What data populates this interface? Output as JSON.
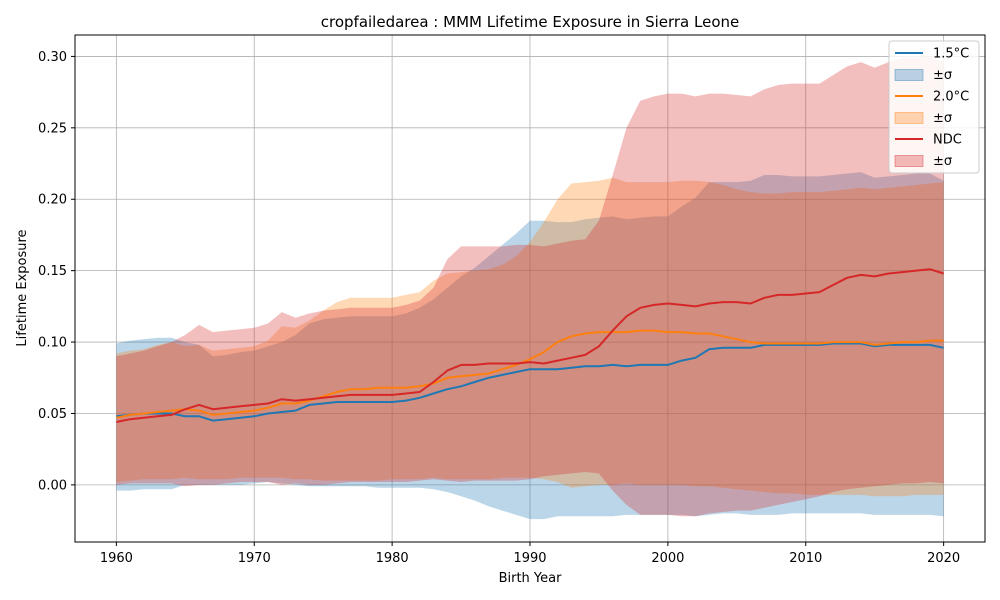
{
  "chart_data": {
    "type": "line",
    "title": "cropfailedarea : MMM Lifetime Exposure in Sierra Leone",
    "xlabel": "Birth Year",
    "ylabel": "Lifetime Exposure",
    "xlim": [
      1957,
      2023
    ],
    "ylim": [
      -0.04,
      0.315
    ],
    "xticks": [
      1960,
      1970,
      1980,
      1990,
      2000,
      2010,
      2020
    ],
    "yticks": [
      0.0,
      0.05,
      0.1,
      0.15,
      0.2,
      0.25,
      0.3
    ],
    "ytick_labels": [
      "0.00",
      "0.05",
      "0.10",
      "0.15",
      "0.20",
      "0.25",
      "0.30"
    ],
    "grid": true,
    "legend_position": "top-right",
    "x": [
      1960,
      1961,
      1962,
      1963,
      1964,
      1965,
      1966,
      1967,
      1968,
      1969,
      1970,
      1971,
      1972,
      1973,
      1974,
      1975,
      1976,
      1977,
      1978,
      1979,
      1980,
      1981,
      1982,
      1983,
      1984,
      1985,
      1986,
      1987,
      1988,
      1989,
      1990,
      1991,
      1992,
      1993,
      1994,
      1995,
      1996,
      1997,
      1998,
      1999,
      2000,
      2001,
      2002,
      2003,
      2004,
      2005,
      2006,
      2007,
      2008,
      2009,
      2010,
      2011,
      2012,
      2013,
      2014,
      2015,
      2016,
      2017,
      2018,
      2019,
      2020
    ],
    "series": [
      {
        "name": "1.5°C",
        "color": "#1f77b4",
        "band_label": "±σ",
        "values": [
          0.048,
          0.049,
          0.05,
          0.05,
          0.05,
          0.048,
          0.048,
          0.045,
          0.046,
          0.047,
          0.048,
          0.05,
          0.051,
          0.052,
          0.056,
          0.057,
          0.058,
          0.058,
          0.058,
          0.058,
          0.058,
          0.059,
          0.061,
          0.064,
          0.067,
          0.069,
          0.072,
          0.075,
          0.077,
          0.079,
          0.081,
          0.081,
          0.081,
          0.082,
          0.083,
          0.083,
          0.084,
          0.083,
          0.084,
          0.084,
          0.084,
          0.087,
          0.089,
          0.095,
          0.096,
          0.096,
          0.096,
          0.098,
          0.098,
          0.098,
          0.098,
          0.098,
          0.099,
          0.099,
          0.099,
          0.097,
          0.098,
          0.098,
          0.098,
          0.098,
          0.096
        ],
        "upper": [
          0.099,
          0.101,
          0.102,
          0.103,
          0.103,
          0.1,
          0.098,
          0.09,
          0.091,
          0.093,
          0.094,
          0.097,
          0.1,
          0.105,
          0.113,
          0.116,
          0.117,
          0.118,
          0.118,
          0.118,
          0.118,
          0.12,
          0.124,
          0.13,
          0.138,
          0.146,
          0.152,
          0.16,
          0.168,
          0.176,
          0.185,
          0.185,
          0.184,
          0.184,
          0.186,
          0.187,
          0.188,
          0.186,
          0.187,
          0.188,
          0.188,
          0.195,
          0.201,
          0.212,
          0.212,
          0.212,
          0.213,
          0.217,
          0.217,
          0.216,
          0.216,
          0.216,
          0.217,
          0.218,
          0.219,
          0.215,
          0.216,
          0.217,
          0.218,
          0.218,
          0.213
        ],
        "lower": [
          -0.004,
          -0.004,
          -0.003,
          -0.003,
          -0.003,
          0.0,
          0.0,
          0.0,
          0.0,
          0.0,
          0.001,
          0.002,
          0.001,
          0.0,
          -0.001,
          -0.001,
          -0.001,
          -0.001,
          -0.001,
          -0.002,
          -0.002,
          -0.002,
          -0.002,
          -0.003,
          -0.005,
          -0.008,
          -0.011,
          -0.015,
          -0.018,
          -0.021,
          -0.024,
          -0.024,
          -0.022,
          -0.022,
          -0.022,
          -0.022,
          -0.022,
          -0.021,
          -0.021,
          -0.021,
          -0.021,
          -0.021,
          -0.022,
          -0.021,
          -0.02,
          -0.02,
          -0.021,
          -0.021,
          -0.021,
          -0.02,
          -0.02,
          -0.02,
          -0.02,
          -0.02,
          -0.02,
          -0.021,
          -0.021,
          -0.021,
          -0.021,
          -0.021,
          -0.022
        ]
      },
      {
        "name": "2.0°C",
        "color": "#ff7f0e",
        "band_label": "±σ",
        "values": [
          0.047,
          0.049,
          0.05,
          0.051,
          0.052,
          0.053,
          0.052,
          0.049,
          0.05,
          0.051,
          0.052,
          0.054,
          0.057,
          0.057,
          0.059,
          0.062,
          0.065,
          0.067,
          0.067,
          0.068,
          0.068,
          0.068,
          0.069,
          0.071,
          0.075,
          0.076,
          0.077,
          0.078,
          0.081,
          0.084,
          0.088,
          0.093,
          0.1,
          0.104,
          0.106,
          0.107,
          0.107,
          0.107,
          0.108,
          0.108,
          0.107,
          0.107,
          0.106,
          0.106,
          0.104,
          0.102,
          0.1,
          0.099,
          0.099,
          0.099,
          0.099,
          0.099,
          0.1,
          0.1,
          0.1,
          0.098,
          0.099,
          0.1,
          0.1,
          0.101,
          0.101
        ],
        "upper": [
          0.092,
          0.094,
          0.095,
          0.098,
          0.1,
          0.097,
          0.098,
          0.094,
          0.095,
          0.096,
          0.097,
          0.101,
          0.111,
          0.11,
          0.115,
          0.122,
          0.128,
          0.131,
          0.131,
          0.131,
          0.131,
          0.133,
          0.135,
          0.143,
          0.148,
          0.149,
          0.15,
          0.151,
          0.154,
          0.16,
          0.17,
          0.184,
          0.2,
          0.211,
          0.212,
          0.213,
          0.215,
          0.212,
          0.212,
          0.212,
          0.212,
          0.213,
          0.213,
          0.212,
          0.21,
          0.207,
          0.205,
          0.204,
          0.204,
          0.205,
          0.205,
          0.205,
          0.206,
          0.207,
          0.208,
          0.207,
          0.208,
          0.209,
          0.21,
          0.211,
          0.212
        ],
        "lower": [
          0.002,
          0.003,
          0.004,
          0.004,
          0.004,
          0.005,
          0.004,
          0.004,
          0.004,
          0.005,
          0.005,
          0.005,
          0.005,
          0.004,
          0.004,
          0.003,
          0.003,
          0.003,
          0.003,
          0.003,
          0.004,
          0.004,
          0.004,
          0.005,
          0.004,
          0.004,
          0.004,
          0.004,
          0.005,
          0.005,
          0.005,
          0.004,
          0.002,
          -0.002,
          -0.001,
          0.0,
          0.0,
          0.001,
          0.0,
          0.0,
          0.0,
          0.0,
          -0.001,
          -0.001,
          -0.002,
          -0.003,
          -0.004,
          -0.005,
          -0.006,
          -0.006,
          -0.007,
          -0.007,
          -0.007,
          -0.007,
          -0.007,
          -0.008,
          -0.008,
          -0.008,
          -0.007,
          -0.007,
          -0.007
        ]
      },
      {
        "name": "NDC",
        "color": "#d62728",
        "band_label": "±σ",
        "values": [
          0.044,
          0.046,
          0.047,
          0.048,
          0.049,
          0.053,
          0.056,
          0.053,
          0.054,
          0.055,
          0.056,
          0.057,
          0.06,
          0.059,
          0.06,
          0.061,
          0.062,
          0.063,
          0.063,
          0.063,
          0.063,
          0.064,
          0.065,
          0.072,
          0.08,
          0.084,
          0.084,
          0.085,
          0.085,
          0.085,
          0.086,
          0.085,
          0.087,
          0.089,
          0.091,
          0.097,
          0.108,
          0.118,
          0.124,
          0.126,
          0.127,
          0.126,
          0.125,
          0.127,
          0.128,
          0.128,
          0.127,
          0.131,
          0.133,
          0.133,
          0.134,
          0.135,
          0.14,
          0.145,
          0.147,
          0.146,
          0.148,
          0.149,
          0.15,
          0.151,
          0.148
        ],
        "upper": [
          0.09,
          0.092,
          0.094,
          0.097,
          0.1,
          0.105,
          0.112,
          0.107,
          0.108,
          0.109,
          0.11,
          0.113,
          0.121,
          0.117,
          0.12,
          0.122,
          0.123,
          0.124,
          0.124,
          0.124,
          0.124,
          0.126,
          0.129,
          0.138,
          0.158,
          0.167,
          0.167,
          0.167,
          0.167,
          0.168,
          0.168,
          0.167,
          0.169,
          0.171,
          0.172,
          0.185,
          0.217,
          0.25,
          0.269,
          0.272,
          0.274,
          0.274,
          0.272,
          0.274,
          0.274,
          0.273,
          0.272,
          0.277,
          0.28,
          0.281,
          0.281,
          0.281,
          0.287,
          0.293,
          0.296,
          0.292,
          0.296,
          0.299,
          0.299,
          0.3,
          0.296
        ],
        "lower": [
          0.0,
          0.001,
          0.001,
          0.001,
          0.001,
          -0.001,
          0.0,
          0.0,
          0.001,
          0.002,
          0.002,
          0.002,
          0.0,
          0.001,
          0.0,
          0.0,
          0.001,
          0.002,
          0.002,
          0.002,
          0.002,
          0.002,
          0.003,
          0.004,
          0.003,
          0.002,
          0.003,
          0.003,
          0.003,
          0.003,
          0.004,
          0.006,
          0.007,
          0.008,
          0.009,
          0.008,
          -0.004,
          -0.014,
          -0.021,
          -0.021,
          -0.021,
          -0.022,
          -0.022,
          -0.02,
          -0.019,
          -0.018,
          -0.018,
          -0.016,
          -0.014,
          -0.012,
          -0.01,
          -0.008,
          -0.005,
          -0.003,
          -0.002,
          -0.001,
          0.0,
          0.001,
          0.001,
          0.002,
          0.001
        ]
      }
    ]
  }
}
